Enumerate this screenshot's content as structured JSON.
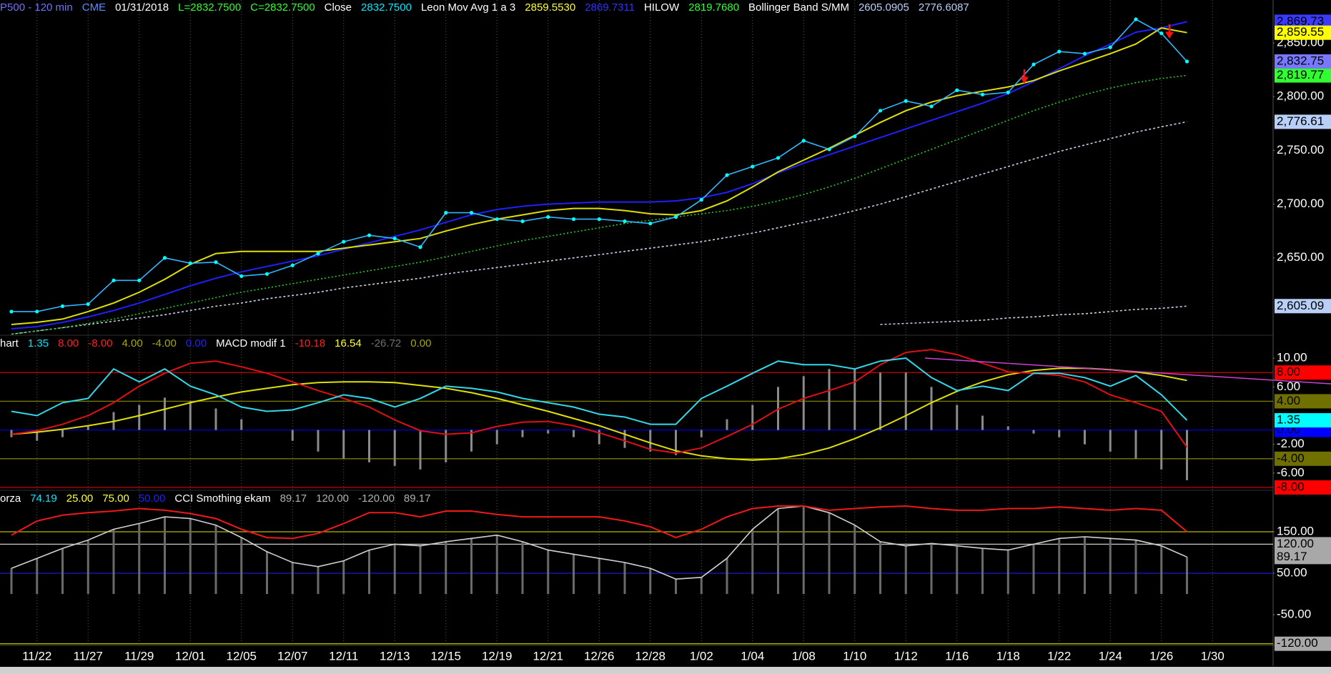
{
  "chart_data": [
    {
      "type": "line",
      "header": [
        {
          "text": "P500 - 120 min",
          "color": "#7070ff"
        },
        {
          "text": "CME",
          "color": "#5a8cff"
        },
        {
          "text": "01/31/2018",
          "color": "#ffffff"
        },
        {
          "text": "L=2832.7500",
          "color": "#30ff30"
        },
        {
          "text": "C=2832.7500",
          "color": "#30ff30"
        },
        {
          "text": "Close",
          "color": "#ffffff"
        },
        {
          "text": "2832.7500",
          "color": "#00e8ff"
        },
        {
          "text": "Leon Mov Avg 1 a 3",
          "color": "#ffffff"
        },
        {
          "text": "2859.5530",
          "color": "#ffff30"
        },
        {
          "text": "2869.7311",
          "color": "#3030ff"
        },
        {
          "text": "HILOW",
          "color": "#ffffff"
        },
        {
          "text": "2819.7680",
          "color": "#30ff30"
        },
        {
          "text": "Bollinger Band S/MM",
          "color": "#ffffff"
        },
        {
          "text": "2605.0905",
          "color": "#b8d0f8"
        },
        {
          "text": "2776.6087",
          "color": "#b8d0f8"
        }
      ],
      "categories": [
        null,
        "11/22",
        null,
        "11/27",
        null,
        "11/29",
        null,
        "12/01",
        null,
        "12/05",
        null,
        "12/07",
        null,
        "12/11",
        null,
        "12/13",
        null,
        "12/15",
        null,
        "12/19",
        null,
        "12/21",
        null,
        "12/26",
        null,
        "12/28",
        null,
        "1/02",
        null,
        "1/04",
        null,
        "1/08",
        null,
        "1/10",
        null,
        "1/12",
        null,
        "1/16",
        null,
        "1/18",
        null,
        "1/22",
        null,
        "1/24",
        null,
        "1/26",
        null,
        "1/30"
      ],
      "xgrid": true,
      "ylim": [
        2578,
        2878
      ],
      "yticks": [
        {
          "value": 2650,
          "label": "2,650.00"
        },
        {
          "value": 2700,
          "label": "2,700.00"
        },
        {
          "value": 2750,
          "label": "2,750.00"
        },
        {
          "value": 2800,
          "label": "2,800.00"
        },
        {
          "value": 2850,
          "label": "2,850.00"
        }
      ],
      "series": [
        {
          "color": "#c8d0e8",
          "style": "dashed",
          "value_label": "2,776.61",
          "tag_color": "#b8d0f8",
          "values": [
            2579,
            2582,
            2585,
            2588,
            2591,
            2594,
            2597,
            2601,
            2605,
            2608,
            2612,
            2615,
            2618,
            2622,
            2625,
            2628,
            2631,
            2635,
            2638,
            2641,
            2644,
            2647,
            2650,
            2653,
            2656,
            2659,
            2662,
            2665,
            2669,
            2673,
            2678,
            2683,
            2688,
            2694,
            2700,
            2707,
            2714,
            2721,
            2728,
            2735,
            2742,
            2749,
            2755,
            2761,
            2767,
            2772,
            2776.6087,
            null
          ]
        },
        {
          "color": "#c8d0e8",
          "style": "dashed",
          "value_label": "2,605.09",
          "tag_color": "#b8d0f8",
          "values": [
            null,
            null,
            null,
            null,
            null,
            null,
            null,
            null,
            null,
            null,
            null,
            null,
            null,
            null,
            null,
            null,
            null,
            null,
            null,
            null,
            null,
            null,
            null,
            null,
            null,
            null,
            null,
            null,
            null,
            null,
            null,
            null,
            null,
            null,
            2588,
            2589,
            2590,
            2591,
            2592,
            2594,
            2595,
            2597,
            2598,
            2600,
            2602,
            2603,
            2605.0905,
            null
          ]
        },
        {
          "color": "#20d020",
          "style": "dotted",
          "value_label": "2,819.77",
          "tag_color": "#30ff30",
          "values": [
            2579,
            2582,
            2585,
            2589,
            2593,
            2598,
            2603,
            2608,
            2613,
            2618,
            2622,
            2626,
            2630,
            2634,
            2638,
            2642,
            2646,
            2651,
            2656,
            2661,
            2666,
            2670,
            2674,
            2678,
            2682,
            2685,
            2688,
            2691,
            2694,
            2698,
            2703,
            2709,
            2716,
            2724,
            2733,
            2742,
            2751,
            2760,
            2769,
            2778,
            2787,
            2795,
            2802,
            2808,
            2813,
            2817,
            2819.768,
            null
          ]
        },
        {
          "color": "#2020ff",
          "style": "solid",
          "value_label": "2,869.73",
          "tag_color": "#3a3aff",
          "values": [
            2584,
            2586,
            2590,
            2595,
            2601,
            2608,
            2616,
            2624,
            2631,
            2637,
            2642,
            2647,
            2652,
            2658,
            2664,
            2670,
            2676,
            2683,
            2690,
            2695,
            2698,
            2700,
            2701,
            2702,
            2702,
            2702,
            2703,
            2706,
            2711,
            2719,
            2729,
            2738,
            2746,
            2754,
            2762,
            2770,
            2778,
            2786,
            2794,
            2803,
            2814,
            2826,
            2838,
            2849,
            2860,
            2864,
            2869.7311,
            null
          ]
        },
        {
          "color": "#e0e000",
          "style": "solid",
          "value_label": "2,859.55",
          "tag_color": "#ffff00",
          "values": [
            2588,
            2590,
            2593,
            2600,
            2608,
            2618,
            2630,
            2644,
            2654,
            2656,
            2656,
            2656,
            2656,
            2659,
            2662,
            2665,
            2668,
            2675,
            2681,
            2686,
            2690,
            2694,
            2696,
            2696,
            2694,
            2691,
            2690,
            2694,
            2703,
            2716,
            2730,
            2741,
            2752,
            2764,
            2776,
            2787,
            2795,
            2801,
            2805,
            2809,
            2815,
            2824,
            2832,
            2840,
            2849,
            2864,
            2859.553,
            null
          ]
        },
        {
          "color": "#30b8ff",
          "style": "markers",
          "marker_color": "#00ffff",
          "value_label": "2,832.75",
          "tag_color": "#7878ff",
          "values": [
            2600,
            2600,
            2605,
            2607,
            2629,
            2629,
            2650,
            2645,
            2646,
            2633,
            2635,
            2643,
            2654,
            2665,
            2671,
            2668,
            2660,
            2692,
            2692,
            2686,
            2684,
            2688,
            2686,
            2686,
            2684,
            2682,
            2688,
            2704,
            2727,
            2735,
            2743,
            2759,
            2751,
            2763,
            2787,
            2796,
            2791,
            2806,
            2802,
            2804,
            2830,
            2842,
            2840,
            2846,
            2872,
            2859,
            2832.75,
            null
          ]
        }
      ]
    },
    {
      "type": "line",
      "header": [
        {
          "text": "hart",
          "color": "#ffffff"
        },
        {
          "text": "1.35",
          "color": "#00e8ff"
        },
        {
          "text": "8.00",
          "color": "#ff2020"
        },
        {
          "text": "-8.00",
          "color": "#ff2020"
        },
        {
          "text": "4.00",
          "color": "#a8a800"
        },
        {
          "text": "-4.00",
          "color": "#a8a800"
        },
        {
          "text": "0.00",
          "color": "#2020ff"
        },
        {
          "text": "MACD modif 1",
          "color": "#ffffff"
        },
        {
          "text": "-10.18",
          "color": "#ff2020"
        },
        {
          "text": "16.54",
          "color": "#ffff30"
        },
        {
          "text": "-26.72",
          "color": "#707070"
        },
        {
          "text": "0.00",
          "color": "#a8a800"
        }
      ],
      "ylim": [
        -8.4,
        13.2
      ],
      "yticks": [
        {
          "value": 10,
          "label": "10.00"
        },
        {
          "value": 6,
          "label": "6.00"
        },
        {
          "value": -2,
          "label": "-2.00"
        },
        {
          "value": -6,
          "label": "-6.00"
        }
      ],
      "levels": [
        {
          "value": 8,
          "label": "8.00",
          "color": "#d00000",
          "tag_color": "#ff0000"
        },
        {
          "value": 4,
          "label": "4.00",
          "color": "#7a7a00",
          "tag_color": "#707000"
        },
        {
          "value": 0,
          "label": "0.00",
          "color": "#0000d0",
          "tag_color": "#0000ff"
        },
        {
          "value": -4,
          "label": "-4.00",
          "color": "#7a7a00",
          "tag_color": "#707000"
        },
        {
          "value": -8,
          "label": "-8.00",
          "color": "#d00000",
          "tag_color": "#ff0000"
        }
      ],
      "series": [
        {
          "color": "#8a8a8a",
          "style": "bars",
          "values": [
            -1.0,
            -1.5,
            -1.0,
            0.5,
            2.5,
            3.5,
            4.5,
            4.0,
            3.0,
            1.5,
            0.0,
            -1.5,
            -3.0,
            -4.0,
            -4.5,
            -5.0,
            -5.5,
            -4.5,
            -3.0,
            -2.0,
            -1.0,
            -0.5,
            -1.0,
            -2.0,
            -2.5,
            -3.0,
            -3.5,
            -1.0,
            1.5,
            3.5,
            6.0,
            7.5,
            8.5,
            8.5,
            8.0,
            8.0,
            6.0,
            3.5,
            2.0,
            0.5,
            -0.5,
            -1.0,
            -2.0,
            -3.0,
            -4.0,
            -5.5,
            -7.0,
            null
          ]
        },
        {
          "color": "#e0e000",
          "style": "solid",
          "values": [
            -0.6,
            -0.3,
            0.1,
            0.6,
            1.2,
            2.0,
            2.9,
            3.8,
            4.6,
            5.3,
            5.8,
            6.3,
            6.6,
            6.7,
            6.7,
            6.6,
            6.2,
            5.8,
            5.2,
            4.4,
            3.5,
            2.6,
            1.6,
            0.6,
            -0.6,
            -1.8,
            -2.9,
            -3.6,
            -4.0,
            -4.2,
            -4.0,
            -3.4,
            -2.5,
            -1.2,
            0.3,
            2.0,
            3.8,
            5.4,
            6.7,
            7.7,
            8.3,
            8.6,
            8.6,
            8.4,
            8.1,
            7.6,
            6.9,
            null
          ]
        },
        {
          "color": "#e01010",
          "style": "solid",
          "values": [
            -0.6,
            -0.1,
            0.8,
            2.0,
            3.8,
            6.1,
            7.9,
            9.3,
            9.6,
            8.8,
            7.9,
            6.7,
            5.5,
            4.4,
            3.2,
            1.4,
            -0.1,
            -0.6,
            -0.4,
            0.5,
            1.1,
            1.2,
            0.6,
            -0.4,
            -1.5,
            -2.7,
            -3.2,
            -2.5,
            -0.9,
            0.8,
            2.9,
            4.4,
            5.5,
            6.7,
            9.1,
            10.8,
            11.2,
            10.5,
            9.3,
            8.1,
            7.9,
            7.6,
            6.7,
            4.9,
            3.8,
            2.6,
            -2.4,
            null
          ]
        },
        {
          "color": "#30d8e8",
          "style": "solid",
          "value_label": "1.35",
          "tag_color": "#00ffff",
          "values": [
            2.6,
            2.0,
            3.8,
            4.4,
            8.5,
            6.7,
            8.5,
            6.1,
            4.9,
            3.2,
            2.6,
            2.8,
            3.8,
            4.9,
            4.4,
            3.2,
            4.4,
            6.1,
            5.8,
            5.3,
            4.4,
            3.8,
            3.2,
            2.2,
            1.8,
            0.8,
            0.8,
            4.4,
            6.1,
            7.9,
            9.6,
            9.1,
            9.1,
            8.5,
            9.6,
            10.0,
            7.3,
            5.5,
            6.1,
            5.5,
            7.9,
            7.9,
            7.3,
            6.1,
            7.6,
            4.9,
            1.35,
            null
          ]
        }
      ]
    },
    {
      "type": "line",
      "header": [
        {
          "text": "orza",
          "color": "#ffffff"
        },
        {
          "text": "74.19",
          "color": "#00e8ff"
        },
        {
          "text": "25.00",
          "color": "#ffff30"
        },
        {
          "text": "75.00",
          "color": "#ffff30"
        },
        {
          "text": "50.00",
          "color": "#2020ff"
        },
        {
          "text": "CCI Smothing ekam",
          "color": "#ffffff"
        },
        {
          "text": "89.17",
          "color": "#b0b0b0"
        },
        {
          "text": "120.00",
          "color": "#b0b0b0"
        },
        {
          "text": "-120.00",
          "color": "#b0b0b0"
        },
        {
          "text": "89.17",
          "color": "#b0b0b0"
        }
      ],
      "ylim": [
        -124,
        250
      ],
      "yticks": [
        {
          "value": 150,
          "label": "150.00"
        },
        {
          "value": 50,
          "label": "50.00"
        },
        {
          "value": -50,
          "label": "-50.00"
        }
      ],
      "levels": [
        {
          "value": 150,
          "color": "#b8b800"
        },
        {
          "value": 120,
          "label": "120.00",
          "color": "#c0c0c0",
          "tag_color": "#a8a8a8"
        },
        {
          "value": 50,
          "color": "#1818c0"
        },
        {
          "value": -120,
          "label": "-120.00",
          "color": "#b8b800",
          "tag_color": "#a8a8a8"
        }
      ],
      "series": [
        {
          "color": "#d0d0d0",
          "style": "histline",
          "bar_color": "#6a6a6a",
          "value_label": "89.17",
          "tag_color": "#a8a8a8",
          "values": [
            62,
            86,
            110,
            130,
            156,
            170,
            186,
            182,
            166,
            136,
            102,
            76,
            66,
            80,
            106,
            120,
            116,
            126,
            134,
            142,
            126,
            106,
            96,
            86,
            76,
            62,
            36,
            40,
            86,
            156,
            206,
            212,
            196,
            166,
            126,
            116,
            122,
            116,
            110,
            106,
            120,
            134,
            138,
            134,
            130,
            116,
            89.17,
            null
          ]
        },
        {
          "color": "#f01818",
          "style": "solid",
          "values": [
            142,
            176,
            190,
            196,
            200,
            206,
            202,
            194,
            182,
            156,
            136,
            134,
            146,
            170,
            196,
            196,
            186,
            200,
            200,
            192,
            186,
            186,
            186,
            186,
            176,
            162,
            136,
            156,
            186,
            206,
            212,
            212,
            202,
            206,
            210,
            212,
            206,
            202,
            202,
            206,
            206,
            210,
            206,
            202,
            206,
            202,
            150,
            null
          ]
        }
      ]
    }
  ]
}
